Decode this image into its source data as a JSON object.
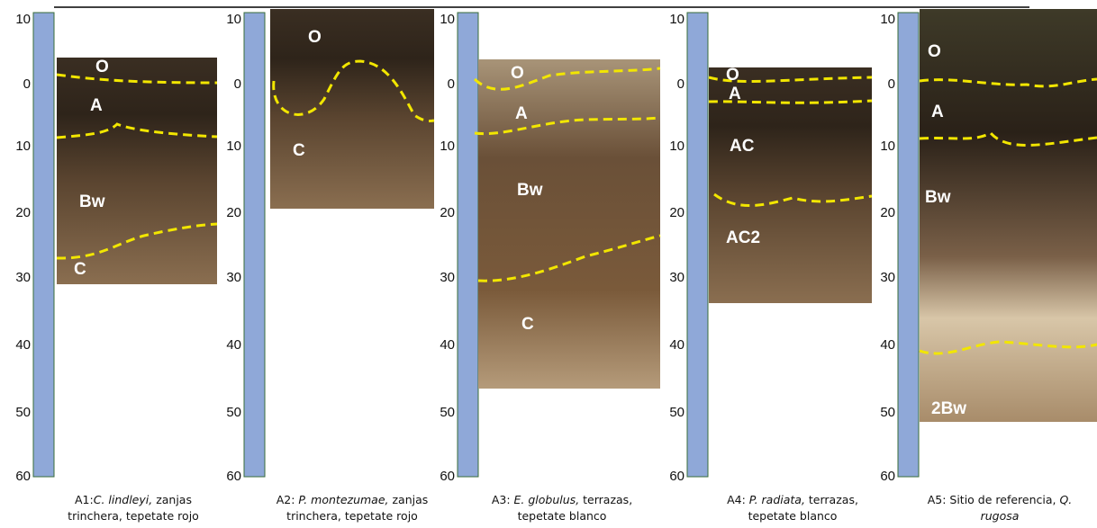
{
  "depth_labels": [
    "10",
    "0",
    "10",
    "20",
    "30",
    "40",
    "50",
    "60"
  ],
  "panels": [
    {
      "horizons": [
        "O",
        "A",
        "Bw",
        "C"
      ],
      "caption": [
        [
          {
            "text": "A1:"
          },
          {
            "text": "C. lindleyi,",
            "italic": true
          },
          {
            "text": " zanjas"
          }
        ],
        [
          {
            "text": "trinchera, tepetate rojo"
          }
        ]
      ]
    },
    {
      "horizons": [
        "O",
        "C"
      ],
      "caption": [
        [
          {
            "text": "A2: "
          },
          {
            "text": "P. montezumae,",
            "italic": true
          },
          {
            "text": " zanjas"
          }
        ],
        [
          {
            "text": "trinchera, tepetate rojo"
          }
        ]
      ]
    },
    {
      "horizons": [
        "O",
        "A",
        "Bw",
        "C"
      ],
      "caption": [
        [
          {
            "text": "A3: "
          },
          {
            "text": "E. globulus,",
            "italic": true
          },
          {
            "text": " terrazas,"
          }
        ],
        [
          {
            "text": "tepetate blanco"
          }
        ]
      ]
    },
    {
      "horizons": [
        "O",
        "A",
        "AC",
        "AC2"
      ],
      "caption": [
        [
          {
            "text": "A4: "
          },
          {
            "text": "P. radiata,",
            "italic": true
          },
          {
            "text": " terrazas,"
          }
        ],
        [
          {
            "text": "tepetate blanco"
          }
        ]
      ]
    },
    {
      "horizons": [
        "O",
        "A",
        "Bw",
        "2Bw"
      ],
      "caption": [
        [
          {
            "text": "A5: Sitio de referencia, "
          },
          {
            "text": "Q.",
            "italic": true
          }
        ],
        [
          {
            "text": "rugosa",
            "italic": true
          }
        ]
      ]
    }
  ]
}
